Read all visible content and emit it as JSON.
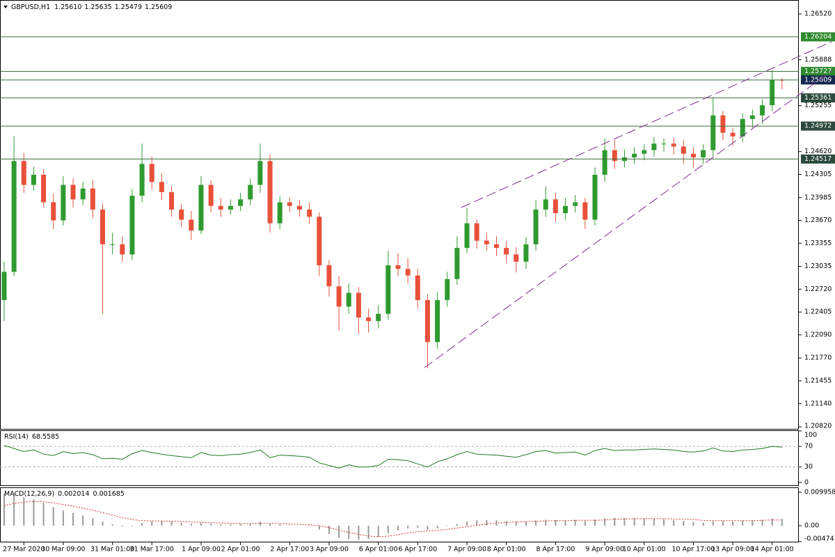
{
  "chart_data": [
    {
      "type": "candlestick",
      "title": "GBPUSD,H1",
      "title_values": [
        "1.25610",
        "1.25635",
        "1.25479",
        "1.25609"
      ],
      "categories": [
        null,
        null,
        "27 Mar 2020",
        null,
        null,
        null,
        "30 Mar 09:00",
        null,
        null,
        null,
        null,
        "31 Mar 01:00",
        null,
        null,
        null,
        "31 Mar 17:00",
        null,
        null,
        null,
        null,
        "1 Apr 09:00",
        null,
        null,
        null,
        "2 Apr 01:00",
        null,
        null,
        null,
        null,
        "2 Apr 17:00",
        null,
        null,
        null,
        "3 Apr 09:00",
        null,
        null,
        null,
        null,
        "6 Apr 01:00",
        null,
        null,
        null,
        "6 Apr 17:00",
        null,
        null,
        null,
        null,
        "7 Apr 09:00",
        null,
        null,
        null,
        "8 Apr 01:00",
        null,
        null,
        null,
        null,
        "8 Apr 17:00",
        null,
        null,
        null,
        null,
        "9 Apr 09:00",
        null,
        null,
        null,
        "10 Apr 01:00",
        null,
        null,
        null,
        null,
        "10 Apr 17:00",
        null,
        null,
        null,
        "13 Apr 09:00",
        null,
        null,
        null,
        "14 Apr 01:00",
        null
      ],
      "open": [
        1.2257,
        1.2296,
        1.2449,
        1.2416,
        1.243,
        1.2392,
        1.2367,
        1.2416,
        1.2396,
        1.2411,
        1.2382,
        1.2334,
        1.2334,
        1.232,
        1.2401,
        1.2445,
        1.242,
        1.2406,
        1.2382,
        1.2368,
        1.2353,
        1.2416,
        1.2387,
        1.2382,
        1.2387,
        1.2396,
        1.2416,
        1.2449,
        1.2363,
        1.2392,
        1.2387,
        1.2382,
        1.2372,
        1.2305,
        1.2276,
        1.2248,
        1.2267,
        1.2233,
        1.2228,
        1.2238,
        1.2305,
        1.23,
        1.2291,
        1.2257,
        1.2199,
        1.2257,
        1.2286,
        1.2329,
        1.2363,
        1.2339,
        1.2334,
        1.2329,
        1.232,
        1.231,
        1.2334,
        1.2382,
        1.2396,
        1.2377,
        1.2387,
        1.2392,
        1.2368,
        1.243,
        1.2464,
        1.2449,
        1.2454,
        1.2459,
        1.2464,
        1.2473,
        1.2473,
        1.2469,
        1.2459,
        1.2454,
        1.2464,
        1.2512,
        1.2488,
        1.2483,
        1.2507,
        1.2512,
        1.2526,
        1.2561
      ],
      "high": [
        1.231,
        1.2483,
        1.246,
        1.2441,
        1.2438,
        1.2404,
        1.2428,
        1.2425,
        1.242,
        1.2423,
        1.239,
        1.235,
        1.2345,
        1.241,
        1.2473,
        1.2455,
        1.2432,
        1.2415,
        1.239,
        1.238,
        1.2428,
        1.2422,
        1.2398,
        1.2396,
        1.2405,
        1.2425,
        1.2473,
        1.2458,
        1.24,
        1.2399,
        1.2395,
        1.2392,
        1.2378,
        1.2312,
        1.229,
        1.228,
        1.2275,
        1.2245,
        1.225,
        1.2325,
        1.2322,
        1.2315,
        1.23,
        1.2265,
        1.2268,
        1.2296,
        1.2345,
        1.2384,
        1.2368,
        1.235,
        1.2345,
        1.2338,
        1.233,
        1.2344,
        1.2395,
        1.2414,
        1.2405,
        1.2398,
        1.2402,
        1.2398,
        1.244,
        1.248,
        1.2478,
        1.2465,
        1.2468,
        1.2472,
        1.2482,
        1.248,
        1.2481,
        1.2478,
        1.2468,
        1.2472,
        1.2536,
        1.2518,
        1.2495,
        1.2515,
        1.252,
        1.2534,
        1.2574,
        1.25635
      ],
      "low": [
        1.2228,
        1.229,
        1.2405,
        1.2408,
        1.2385,
        1.2355,
        1.236,
        1.2385,
        1.2388,
        1.237,
        1.2238,
        1.232,
        1.231,
        1.2312,
        1.2392,
        1.241,
        1.2395,
        1.2372,
        1.2358,
        1.234,
        1.2348,
        1.2378,
        1.2372,
        1.2375,
        1.238,
        1.2388,
        1.2405,
        1.235,
        1.2355,
        1.2378,
        1.2372,
        1.2362,
        1.229,
        1.2262,
        1.2215,
        1.2238,
        1.221,
        1.2212,
        1.2218,
        1.223,
        1.229,
        1.228,
        1.2245,
        1.2163,
        1.219,
        1.2248,
        1.2278,
        1.2322,
        1.2328,
        1.2325,
        1.2318,
        1.2308,
        1.2295,
        1.23,
        1.2325,
        1.2372,
        1.2365,
        1.2368,
        1.2378,
        1.2355,
        1.236,
        1.242,
        1.2438,
        1.244,
        1.2445,
        1.245,
        1.2455,
        1.2462,
        1.2458,
        1.2445,
        1.244,
        1.2445,
        1.2455,
        1.2478,
        1.247,
        1.2475,
        1.2495,
        1.25,
        1.2518,
        1.25479
      ],
      "close": [
        1.2296,
        1.2449,
        1.2416,
        1.243,
        1.2392,
        1.2367,
        1.2416,
        1.2396,
        1.2411,
        1.2382,
        1.2334,
        1.2334,
        1.232,
        1.2401,
        1.2445,
        1.242,
        1.2406,
        1.2382,
        1.2368,
        1.2353,
        1.2416,
        1.2387,
        1.2382,
        1.2387,
        1.2396,
        1.2416,
        1.2449,
        1.2363,
        1.2392,
        1.2387,
        1.2382,
        1.2372,
        1.2305,
        1.2276,
        1.2248,
        1.2267,
        1.2233,
        1.2228,
        1.2238,
        1.2305,
        1.23,
        1.2291,
        1.2257,
        1.2199,
        1.2257,
        1.2286,
        1.2329,
        1.2363,
        1.2339,
        1.2334,
        1.2329,
        1.232,
        1.231,
        1.2334,
        1.2382,
        1.2396,
        1.2377,
        1.2387,
        1.2392,
        1.2368,
        1.243,
        1.2464,
        1.2449,
        1.2454,
        1.2459,
        1.2464,
        1.2473,
        1.2473,
        1.2469,
        1.2459,
        1.2454,
        1.2464,
        1.2512,
        1.2488,
        1.2483,
        1.2507,
        1.2512,
        1.2526,
        1.2561,
        1.25609
      ],
      "up_color": "#2f9a2f",
      "down_color": "#e8503a",
      "ylim": [
        1.20782,
        1.26703
      ],
      "yticks": [
        {
          "value": 1.2652,
          "label": "1.26520"
        },
        1.25888,
        1.25255,
        {
          "value": 1.2462,
          "label": "1.24620"
        },
        1.24305,
        1.23985,
        {
          "value": 1.2367,
          "label": "1.23670"
        },
        1.23355,
        1.23035,
        {
          "value": 1.2272,
          "label": "1.22720"
        },
        1.22405,
        {
          "value": 1.2209,
          "label": "1.22090"
        },
        {
          "value": 1.2177,
          "label": "1.21770"
        },
        1.21455,
        {
          "value": 1.2114,
          "label": "1.21140"
        },
        {
          "value": 1.2082,
          "label": "1.20820"
        }
      ],
      "levels": [
        {
          "value": 1.26204,
          "color": "#2e8a2e"
        },
        {
          "value": 1.25727,
          "color": "#2e8a2e"
        },
        {
          "value": 1.25609,
          "color": "#16284f"
        },
        {
          "value": 1.25361,
          "color": "#2c4a3c"
        },
        {
          "value": 1.24972,
          "color": "#2c4a3c"
        },
        {
          "value": 1.24517,
          "color": "#2c4a3c"
        }
      ],
      "grid": false
    },
    {
      "type": "line",
      "name": "RSI(14)",
      "color": "#1f7a1f",
      "values": [
        72,
        66,
        60,
        63,
        55,
        52,
        60,
        56,
        58,
        54,
        46,
        47,
        45,
        56,
        62,
        58,
        55,
        52,
        50,
        48,
        58,
        53,
        52,
        54,
        55,
        58,
        63,
        48,
        53,
        52,
        51,
        49,
        38,
        33,
        28,
        34,
        30,
        30,
        33,
        45,
        44,
        42,
        36,
        30,
        40,
        46,
        54,
        60,
        55,
        54,
        53,
        51,
        49,
        54,
        60,
        62,
        57,
        58,
        59,
        53,
        62,
        66,
        62,
        63,
        63,
        64,
        65,
        64,
        63,
        60,
        59,
        61,
        67,
        61,
        60,
        63,
        64,
        66,
        70,
        68.5585
      ],
      "ylim": [
        -7,
        100
      ],
      "yticks": [
        0,
        30,
        70,
        100
      ],
      "levels": [
        30,
        70
      ]
    },
    {
      "type": "macd",
      "name": "MACD(12,26,9)",
      "series": [
        {
          "color": "#9a9a9a",
          "values": [
            0.0095,
            0.0092,
            0.0085,
            0.0078,
            0.0068,
            0.0055,
            0.0045,
            0.0038,
            0.003,
            0.0022,
            0.0012,
            0.0004,
            -0.0003,
            -0.0002,
            0.0008,
            0.0013,
            0.0014,
            0.0012,
            0.0009,
            0.0006,
            0.0008,
            0.0006,
            0.0004,
            0.0004,
            0.0005,
            0.0007,
            0.0011,
            0.0006,
            0.0004,
            0.0002,
            0.0001,
            -0.0002,
            -0.0012,
            -0.0025,
            -0.0036,
            -0.004,
            -0.0042,
            -0.004,
            -0.0034,
            -0.0022,
            -0.0014,
            -0.0008,
            -0.0006,
            -0.0012,
            -0.0008,
            -0.0001,
            0.0005,
            0.0012,
            0.0016,
            0.0017,
            0.0016,
            0.0014,
            0.0012,
            0.0012,
            0.0015,
            0.0018,
            0.0017,
            0.0017,
            0.0017,
            0.0014,
            0.0018,
            0.0022,
            0.0023,
            0.0023,
            0.0022,
            0.0021,
            0.002,
            0.0019,
            0.0017,
            0.0014,
            0.0011,
            0.0009,
            0.0013,
            0.0014,
            0.0013,
            0.0015,
            0.0016,
            0.0018,
            0.0021,
            0.002014
          ]
        },
        {
          "color": "#d03030",
          "values": [
            0.006,
            0.0066,
            0.007,
            0.0072,
            0.0071,
            0.0068,
            0.0063,
            0.0058,
            0.0052,
            0.0046,
            0.0039,
            0.0032,
            0.0024,
            0.0018,
            0.0015,
            0.0014,
            0.0014,
            0.0013,
            0.0012,
            0.0011,
            0.001,
            0.0009,
            0.0008,
            0.0007,
            0.0006,
            0.0006,
            0.0007,
            0.0007,
            0.0006,
            0.0005,
            0.0004,
            0.0003,
            0.0,
            -0.0006,
            -0.0013,
            -0.002,
            -0.0026,
            -0.0031,
            -0.0033,
            -0.0031,
            -0.0027,
            -0.0022,
            -0.0018,
            -0.0016,
            -0.0014,
            -0.0011,
            -0.0007,
            -0.0003,
            0.0001,
            0.0005,
            0.0008,
            0.001,
            0.0011,
            0.0012,
            0.0013,
            0.0014,
            0.0015,
            0.0015,
            0.0016,
            0.0016,
            0.0016,
            0.0017,
            0.0019,
            0.002,
            0.0021,
            0.0021,
            0.0021,
            0.0021,
            0.002,
            0.0019,
            0.0018,
            0.0016,
            0.0015,
            0.0015,
            0.0015,
            0.0015,
            0.0015,
            0.0016,
            0.0017,
            0.001685
          ]
        }
      ],
      "ylim": [
        -0.00498,
        0.011203
      ],
      "yticks": [
        {
          "value": 0,
          "label": "0.00"
        },
        0.009958,
        -0.00474
      ]
    }
  ]
}
